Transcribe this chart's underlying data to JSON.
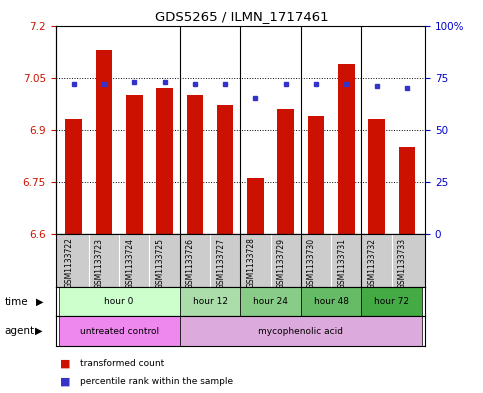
{
  "title": "GDS5265 / ILMN_1717461",
  "samples": [
    "GSM1133722",
    "GSM1133723",
    "GSM1133724",
    "GSM1133725",
    "GSM1133726",
    "GSM1133727",
    "GSM1133728",
    "GSM1133729",
    "GSM1133730",
    "GSM1133731",
    "GSM1133732",
    "GSM1133733"
  ],
  "transformed_counts": [
    6.93,
    7.13,
    7.0,
    7.02,
    7.0,
    6.97,
    6.76,
    6.96,
    6.94,
    7.09,
    6.93,
    6.85
  ],
  "percentile_ranks": [
    72,
    72,
    73,
    73,
    72,
    72,
    65,
    72,
    72,
    72,
    71,
    70
  ],
  "ylim_left": [
    6.6,
    7.2
  ],
  "ylim_right": [
    0,
    100
  ],
  "yticks_left": [
    6.6,
    6.75,
    6.9,
    7.05,
    7.2
  ],
  "yticks_right": [
    0,
    25,
    50,
    75,
    100
  ],
  "ytick_labels_right": [
    "0",
    "25",
    "50",
    "75",
    "100%"
  ],
  "bar_color": "#cc1100",
  "dot_color": "#3333cc",
  "bar_bottom": 6.6,
  "time_groups": [
    {
      "label": "hour 0",
      "start": 0,
      "end": 3,
      "color": "#ccffcc"
    },
    {
      "label": "hour 12",
      "start": 4,
      "end": 5,
      "color": "#aaddaa"
    },
    {
      "label": "hour 24",
      "start": 6,
      "end": 7,
      "color": "#88cc88"
    },
    {
      "label": "hour 48",
      "start": 8,
      "end": 9,
      "color": "#66bb66"
    },
    {
      "label": "hour 72",
      "start": 10,
      "end": 11,
      "color": "#44aa44"
    }
  ],
  "agent_groups": [
    {
      "label": "untreated control",
      "start": 0,
      "end": 3,
      "color": "#ee88ee"
    },
    {
      "label": "mycophenolic acid",
      "start": 4,
      "end": 11,
      "color": "#ddaadd"
    }
  ],
  "legend_bar_label": "transformed count",
  "legend_dot_label": "percentile rank within the sample",
  "grid_color": "#000000",
  "tick_label_color_left": "#cc1100",
  "tick_label_color_right": "#0000cc",
  "sample_box_color": "#cccccc",
  "group_sep_boundaries": [
    3.5,
    5.5,
    7.5,
    9.5
  ]
}
